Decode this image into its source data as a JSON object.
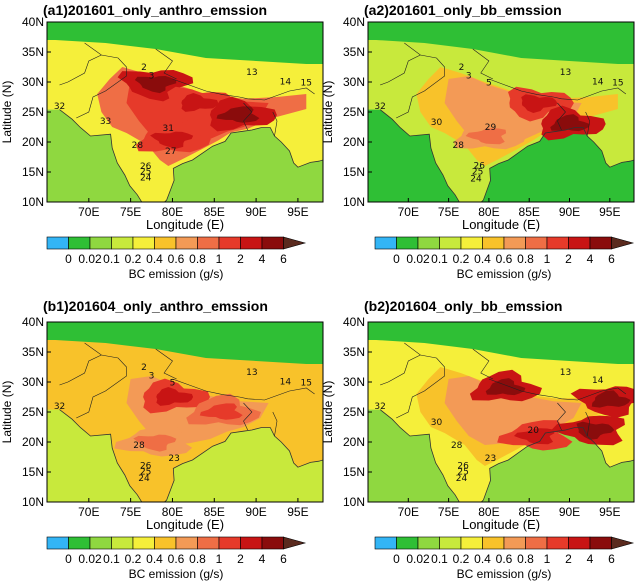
{
  "colors": {
    "levels": [
      "#33b5f5",
      "#2fbf35",
      "#8fd840",
      "#c8e93c",
      "#f5ef3a",
      "#f8c22a",
      "#f39a56",
      "#ef6e45",
      "#e63a2a",
      "#c81414",
      "#8a0c0c",
      "#5a2a1e"
    ],
    "coast": "#333333",
    "border": "#222222"
  },
  "chart_data": [
    {
      "type": "heatmap",
      "panel_id": "a1",
      "title": "(a1)201601_only_anthro_emssion",
      "xlabel": "Longitude (E)",
      "ylabel": "Latitude (N)",
      "xlim": [
        65,
        98
      ],
      "ylim": [
        10,
        40
      ],
      "x_ticks": [
        "70E",
        "75E",
        "80E",
        "85E",
        "90E",
        "95E"
      ],
      "y_ticks": [
        "10N",
        "15N",
        "20N",
        "25N",
        "30N",
        "35N",
        "40N"
      ],
      "colorbar": {
        "label": "BC emission (g/s)",
        "levels": [
          "0",
          "0.02",
          "0.1",
          "0.2",
          "0.4",
          "0.6",
          "0.8",
          "1",
          "2",
          "4",
          "6"
        ]
      },
      "stations": [
        {
          "id": "2",
          "lon": 76.6,
          "lat": 32.0
        },
        {
          "id": "3",
          "lon": 77.5,
          "lat": 30.6
        },
        {
          "id": "13",
          "lon": 89.5,
          "lat": 31.2
        },
        {
          "id": "14",
          "lon": 93.5,
          "lat": 29.6
        },
        {
          "id": "15",
          "lon": 96.0,
          "lat": 29.4
        },
        {
          "id": "32",
          "lon": 66.5,
          "lat": 25.5
        },
        {
          "id": "33",
          "lon": 72.0,
          "lat": 23.0
        },
        {
          "id": "31",
          "lon": 79.5,
          "lat": 21.8
        },
        {
          "id": "28",
          "lon": 75.8,
          "lat": 19.0
        },
        {
          "id": "27",
          "lon": 79.8,
          "lat": 18.0
        },
        {
          "id": "26",
          "lon": 76.8,
          "lat": 15.5
        },
        {
          "id": "25",
          "lon": 76.8,
          "lat": 14.6
        },
        {
          "id": "24",
          "lon": 76.8,
          "lat": 13.6
        }
      ],
      "hotspots": [
        {
          "lon": 78.0,
          "lat": 29.8,
          "level": 10
        },
        {
          "lon": 83.0,
          "lat": 26.5,
          "level": 9
        },
        {
          "lon": 88.0,
          "lat": 24.5,
          "level": 10
        },
        {
          "lon": 80.0,
          "lat": 20.5,
          "level": 9
        }
      ],
      "background_level": 2,
      "land_level": 8
    },
    {
      "type": "heatmap",
      "panel_id": "a2",
      "title": "(a2)201601_only_bb_emssion",
      "xlabel": "Longitude (E)",
      "ylabel": "Latitude (N)",
      "xlim": [
        65,
        98
      ],
      "ylim": [
        10,
        40
      ],
      "x_ticks": [
        "70E",
        "75E",
        "80E",
        "85E",
        "90E",
        "95E"
      ],
      "y_ticks": [
        "10N",
        "15N",
        "20N",
        "25N",
        "30N",
        "35N",
        "40N"
      ],
      "colorbar": {
        "label": "BC emission (g/s)",
        "levels": [
          "0",
          "0.02",
          "0.1",
          "0.2",
          "0.4",
          "0.6",
          "0.8",
          "1",
          "2",
          "4",
          "6"
        ]
      },
      "stations": [
        {
          "id": "2",
          "lon": 76.6,
          "lat": 32.0
        },
        {
          "id": "3",
          "lon": 77.5,
          "lat": 30.6
        },
        {
          "id": "5",
          "lon": 80.0,
          "lat": 29.4
        },
        {
          "id": "13",
          "lon": 89.5,
          "lat": 31.2
        },
        {
          "id": "14",
          "lon": 93.5,
          "lat": 29.6
        },
        {
          "id": "15",
          "lon": 96.0,
          "lat": 29.4
        },
        {
          "id": "32",
          "lon": 66.5,
          "lat": 25.5
        },
        {
          "id": "30",
          "lon": 73.5,
          "lat": 22.8
        },
        {
          "id": "29",
          "lon": 80.2,
          "lat": 22.0
        },
        {
          "id": "28",
          "lon": 76.2,
          "lat": 19.0
        },
        {
          "id": "26",
          "lon": 78.8,
          "lat": 15.6
        },
        {
          "id": "25",
          "lon": 78.6,
          "lat": 14.6
        },
        {
          "id": "24",
          "lon": 78.4,
          "lat": 13.4
        }
      ],
      "hotspots": [
        {
          "lon": 86.0,
          "lat": 26.5,
          "level": 9
        },
        {
          "lon": 90.0,
          "lat": 23.0,
          "level": 10
        },
        {
          "lon": 80.0,
          "lat": 21.0,
          "level": 7
        }
      ],
      "background_level": 1,
      "land_level": 6
    },
    {
      "type": "heatmap",
      "panel_id": "b1",
      "title": "(b1)201604_only_anthro_emssion",
      "xlabel": "Longitude (E)",
      "ylabel": "Latitude (N)",
      "xlim": [
        65,
        98
      ],
      "ylim": [
        10,
        40
      ],
      "x_ticks": [
        "70E",
        "75E",
        "80E",
        "85E",
        "90E",
        "95E"
      ],
      "y_ticks": [
        "10N",
        "15N",
        "20N",
        "25N",
        "30N",
        "35N",
        "40N"
      ],
      "colorbar": {
        "label": "BC emission (g/s)",
        "levels": [
          "0",
          "0.02",
          "0.1",
          "0.2",
          "0.4",
          "0.6",
          "0.8",
          "1",
          "2",
          "4",
          "6"
        ]
      },
      "stations": [
        {
          "id": "2",
          "lon": 76.6,
          "lat": 32.0
        },
        {
          "id": "3",
          "lon": 77.5,
          "lat": 30.6
        },
        {
          "id": "5",
          "lon": 80.0,
          "lat": 29.4
        },
        {
          "id": "13",
          "lon": 89.5,
          "lat": 31.2
        },
        {
          "id": "14",
          "lon": 93.5,
          "lat": 29.6
        },
        {
          "id": "15",
          "lon": 96.0,
          "lat": 29.4
        },
        {
          "id": "32",
          "lon": 66.5,
          "lat": 25.5
        },
        {
          "id": "28",
          "lon": 76.0,
          "lat": 19.0
        },
        {
          "id": "26",
          "lon": 76.8,
          "lat": 15.6
        },
        {
          "id": "25",
          "lon": 76.8,
          "lat": 14.6
        },
        {
          "id": "24",
          "lon": 76.6,
          "lat": 13.5
        },
        {
          "id": "23",
          "lon": 80.2,
          "lat": 16.8
        }
      ],
      "hotspots": [
        {
          "lon": 80.0,
          "lat": 27.5,
          "level": 9
        },
        {
          "lon": 86.0,
          "lat": 25.0,
          "level": 8
        },
        {
          "lon": 78.0,
          "lat": 20.0,
          "level": 7
        }
      ],
      "background_level": 3,
      "land_level": 6
    },
    {
      "type": "heatmap",
      "panel_id": "b2",
      "title": "(b2)201604_only_bb_emssion",
      "xlabel": "Longitude (E)",
      "ylabel": "Latitude (N)",
      "xlim": [
        65,
        98
      ],
      "ylim": [
        10,
        40
      ],
      "x_ticks": [
        "70E",
        "75E",
        "80E",
        "85E",
        "90E",
        "95E"
      ],
      "y_ticks": [
        "10N",
        "15N",
        "20N",
        "25N",
        "30N",
        "35N",
        "40N"
      ],
      "colorbar": {
        "label": "BC emission (g/s)",
        "levels": [
          "0",
          "0.02",
          "0.1",
          "0.2",
          "0.4",
          "0.6",
          "0.8",
          "1",
          "2",
          "4",
          "6"
        ]
      },
      "stations": [
        {
          "id": "13",
          "lon": 89.5,
          "lat": 31.2
        },
        {
          "id": "14",
          "lon": 93.5,
          "lat": 29.8
        },
        {
          "id": "32",
          "lon": 66.5,
          "lat": 25.5
        },
        {
          "id": "30",
          "lon": 73.5,
          "lat": 22.8
        },
        {
          "id": "28",
          "lon": 76.0,
          "lat": 19.0
        },
        {
          "id": "26",
          "lon": 76.8,
          "lat": 15.6
        },
        {
          "id": "25",
          "lon": 76.8,
          "lat": 14.6
        },
        {
          "id": "24",
          "lon": 76.6,
          "lat": 13.5
        },
        {
          "id": "23",
          "lon": 80.2,
          "lat": 16.8
        },
        {
          "id": "20",
          "lon": 85.5,
          "lat": 21.5
        }
      ],
      "hotspots": [
        {
          "lon": 82.0,
          "lat": 29.0,
          "level": 10
        },
        {
          "lon": 86.0,
          "lat": 21.0,
          "level": 9
        },
        {
          "lon": 93.0,
          "lat": 22.0,
          "level": 10
        },
        {
          "lon": 95.0,
          "lat": 27.0,
          "level": 10
        }
      ],
      "background_level": 2,
      "land_level": 6
    }
  ]
}
